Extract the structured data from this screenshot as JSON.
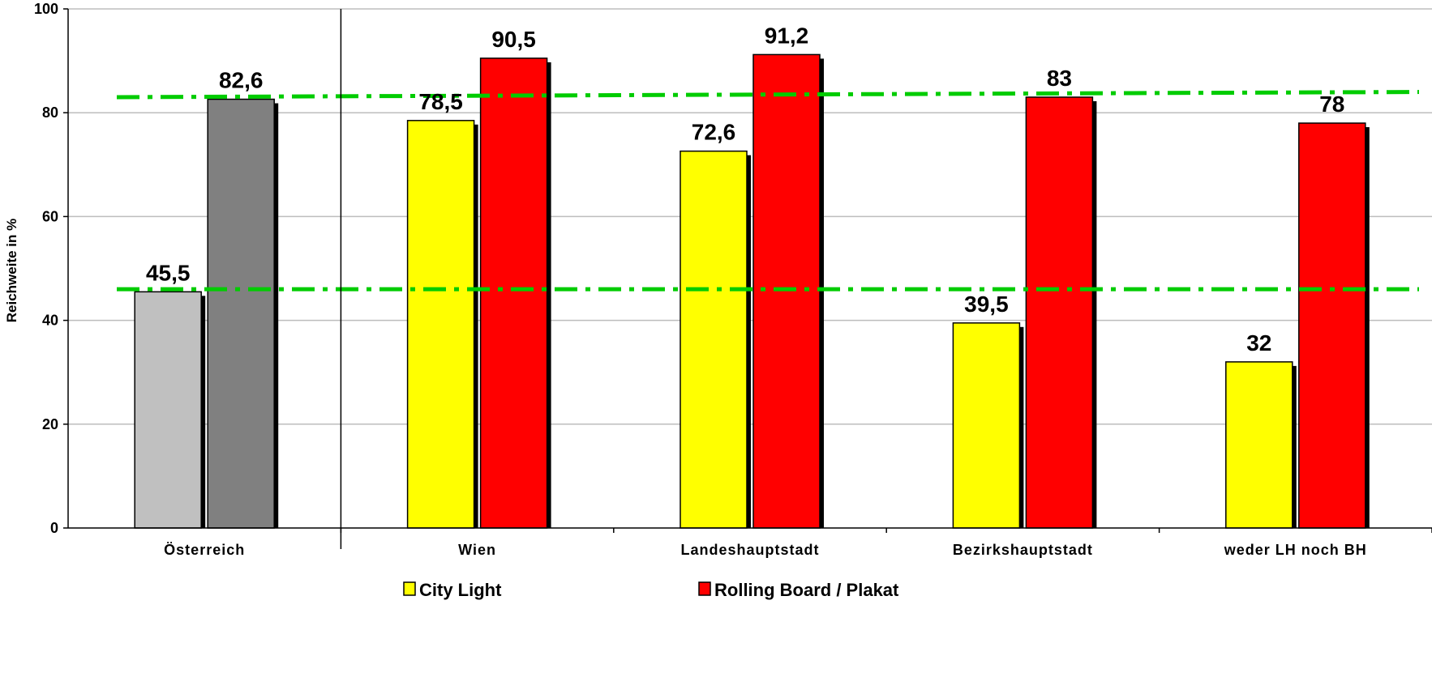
{
  "chart_data": {
    "type": "bar",
    "ylabel": "Reichweite in %",
    "ylim": [
      0,
      100
    ],
    "yticks": [
      0,
      20,
      40,
      60,
      80,
      100
    ],
    "grid": true,
    "categories": [
      "Österreich",
      "Wien",
      "Landeshauptstadt",
      "Bezirkshauptstadt",
      "weder LH noch BH"
    ],
    "series": [
      {
        "name": "City Light",
        "color": "#ffff00",
        "values": [
          45.5,
          78.5,
          72.6,
          39.5,
          32
        ],
        "labels": [
          "45,5",
          "78,5",
          "72,6",
          "39,5",
          "32"
        ]
      },
      {
        "name": "Rolling Board / Plakat",
        "color": "#ff0000",
        "values": [
          82.6,
          90.5,
          91.2,
          83,
          78
        ],
        "labels": [
          "82,6",
          "90,5",
          "91,2",
          "83",
          "78"
        ]
      }
    ],
    "first_category_colors": [
      "#c0c0c0",
      "#808080"
    ],
    "reference_lines": [
      {
        "from": 46,
        "to": 46,
        "color": "#00cc00",
        "style": "dash-dot"
      },
      {
        "from": 83,
        "to": 84,
        "color": "#00cc00",
        "style": "dash-dot"
      }
    ],
    "legend_position": "bottom"
  }
}
